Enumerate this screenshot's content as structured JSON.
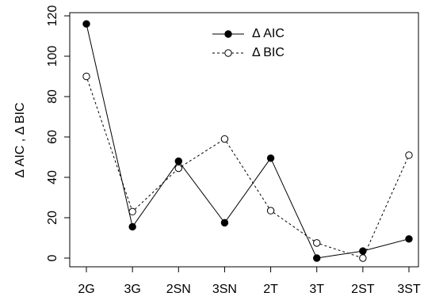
{
  "chart_data": {
    "type": "line",
    "categories": [
      "2G",
      "3G",
      "2SN",
      "3SN",
      "2T",
      "3T",
      "2ST",
      "3ST"
    ],
    "series": [
      {
        "name": "Δ AIC",
        "values": [
          116,
          15.5,
          48,
          17.5,
          49.5,
          0,
          3.5,
          9.5
        ],
        "line_style": "solid",
        "marker": "filled-circle",
        "color": "#000000"
      },
      {
        "name": "Δ BIC",
        "values": [
          90,
          23,
          44.5,
          59,
          23.5,
          7.5,
          0,
          51
        ],
        "line_style": "dashed",
        "marker": "open-circle",
        "color": "#000000"
      }
    ],
    "ylabel": "Δ AIC ,  Δ BIC",
    "xlabel": "",
    "ylim": [
      0,
      120
    ],
    "yticks": [
      0,
      20,
      40,
      60,
      80,
      100,
      120
    ],
    "legend_position": "top-center",
    "grid": false
  }
}
